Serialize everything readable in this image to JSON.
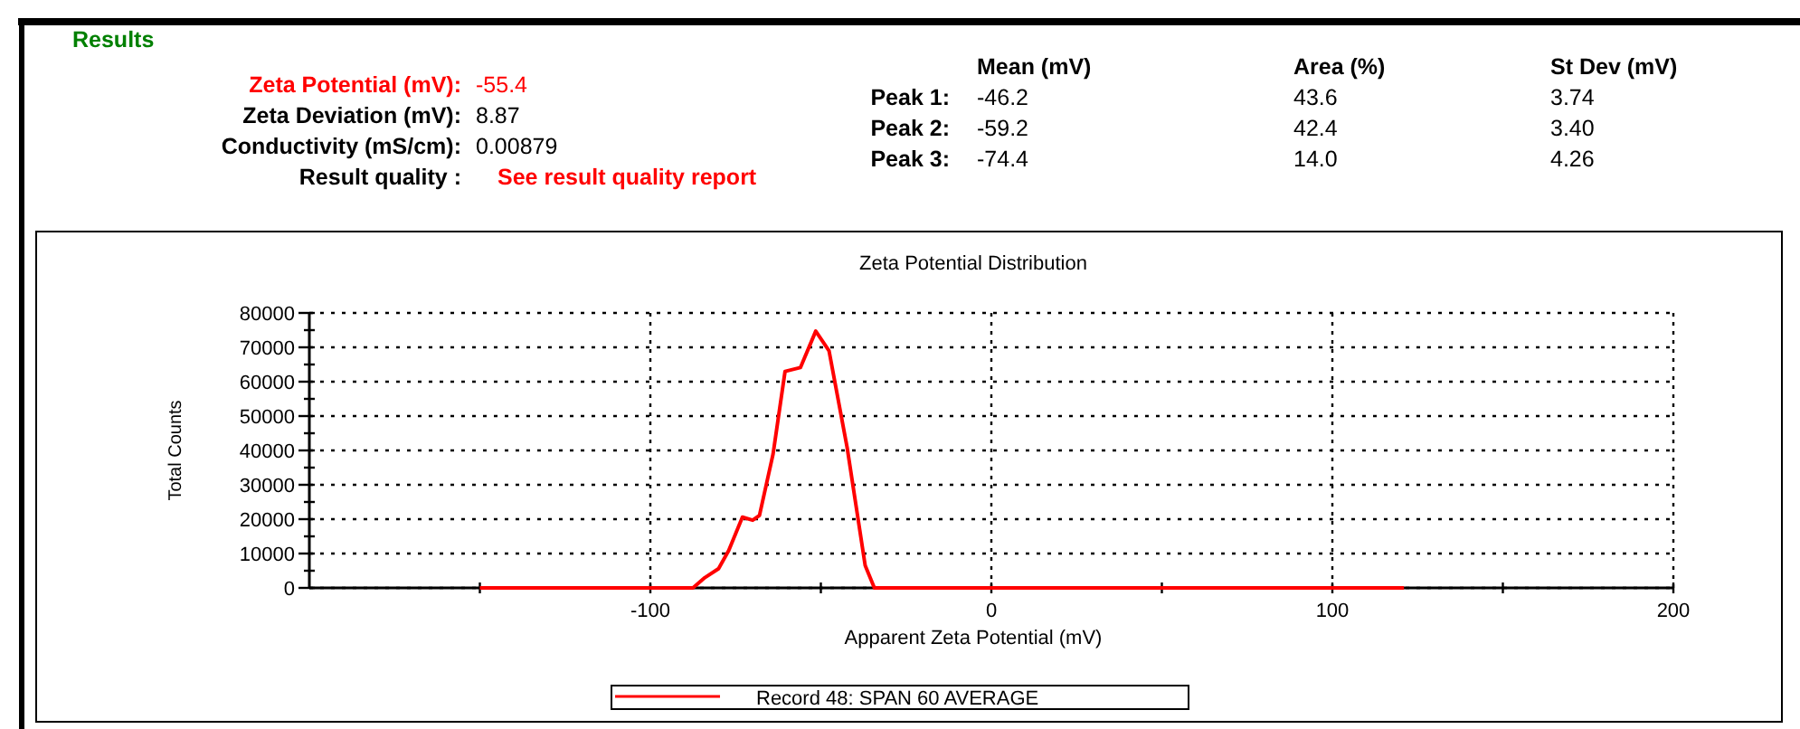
{
  "chart_data": {
    "type": "line",
    "title": "Zeta Potential Distribution",
    "xlabel": "Apparent Zeta Potential (mV)",
    "ylabel": "Total Counts",
    "annotations": [
      "Results",
      "Zeta Potential (mV):",
      "-55.4",
      "Zeta Deviation (mV):",
      "8.87",
      "Conductivity (mS/cm):",
      "0.00879",
      "Result quality :",
      "See result quality report",
      "Mean (mV)",
      "Area (%)",
      "St Dev (mV)",
      "Peak 1:",
      "-46.2",
      "43.6",
      "3.74",
      "Peak 2:",
      "-59.2",
      "42.4",
      "3.40",
      "Peak 3:",
      "-74.4",
      "14.0",
      "4.26"
    ],
    "series": [
      {
        "name": "Record 48: SPAN 60 AVERAGE",
        "color": "#ff0000",
        "x": [
          -150,
          -87.5,
          -84,
          -80,
          -77,
          -73,
          -70,
          -68,
          -64,
          -60.5,
          -56,
          -51.5,
          -47.6,
          -42.3,
          -37,
          -34.3,
          121
        ],
        "values": [
          0,
          0,
          3000,
          5600,
          10900,
          20600,
          19700,
          21100,
          39000,
          63000,
          64100,
          74700,
          69000,
          40900,
          6500,
          0,
          0
        ]
      }
    ],
    "xlim": [
      -200,
      200
    ],
    "xticks": [
      {
        "value": -150,
        "label": null
      },
      -100,
      {
        "value": -50,
        "label": null
      },
      0,
      {
        "value": 50,
        "label": null
      },
      100,
      {
        "value": 150,
        "label": null
      },
      200
    ],
    "ylim": [
      0,
      80000
    ],
    "yticks": [
      0,
      {
        "value": 5000,
        "label": null
      },
      10000,
      {
        "value": 15000,
        "label": null
      },
      20000,
      {
        "value": 25000,
        "label": null
      },
      30000,
      {
        "value": 35000,
        "label": null
      },
      40000,
      {
        "value": 45000,
        "label": null
      },
      50000,
      {
        "value": 55000,
        "label": null
      },
      60000,
      {
        "value": 65000,
        "label": null
      },
      70000,
      {
        "value": 75000,
        "label": null
      },
      80000
    ],
    "grid": true,
    "legend": "bottom",
    "marker": "none",
    "line_style": "solid"
  }
}
